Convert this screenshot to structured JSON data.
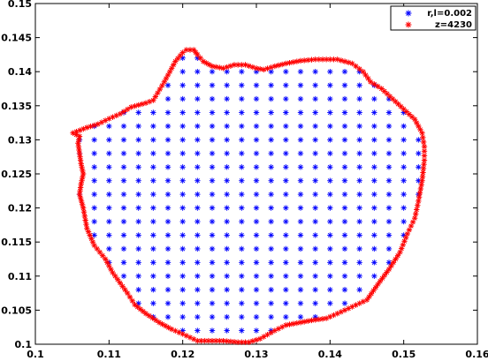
{
  "chart_data": {
    "type": "scatter",
    "xlim": [
      0.1,
      0.16
    ],
    "ylim": [
      0.1,
      0.15
    ],
    "x_ticks": [
      "0.1",
      "0.11",
      "0.12",
      "0.13",
      "0.14",
      "0.15",
      "0.16"
    ],
    "y_ticks": [
      "0.1",
      "0.105",
      "0.11",
      "0.115",
      "0.12",
      "0.125",
      "0.13",
      "0.135",
      "0.14",
      "0.145",
      "0.15"
    ],
    "grid": false,
    "legend_position": "top-right",
    "series": [
      {
        "name": "r,l=0.002",
        "color": "#0000ff",
        "marker": "asterisk",
        "grid_x": {
          "start": 0.106,
          "step": 0.002,
          "count": 24
        },
        "grid_y": {
          "start": 0.102,
          "step": 0.002,
          "count": 21
        }
      },
      {
        "name": "z=4230",
        "color": "#ff0000",
        "marker": "asterisk",
        "x": [
          0.1051,
          0.107,
          0.1085,
          0.11,
          0.1115,
          0.113,
          0.115,
          0.116,
          0.1175,
          0.119,
          0.12,
          0.1205,
          0.1215,
          0.122,
          0.1228,
          0.124,
          0.1255,
          0.127,
          0.1285,
          0.13,
          0.131,
          0.1325,
          0.134,
          0.136,
          0.138,
          0.1395,
          0.141,
          0.143,
          0.1445,
          0.1455,
          0.147,
          0.1485,
          0.15,
          0.1515,
          0.1525,
          0.1528,
          0.1528,
          0.1525,
          0.152,
          0.1515,
          0.1505,
          0.1495,
          0.148,
          0.1465,
          0.145,
          0.143,
          0.141,
          0.1395,
          0.1375,
          0.1355,
          0.134,
          0.1325,
          0.1305,
          0.129,
          0.1275,
          0.1255,
          0.1235,
          0.122,
          0.12,
          0.1185,
          0.1168,
          0.115,
          0.1135,
          0.1125,
          0.1115,
          0.1105,
          0.1095,
          0.108,
          0.107,
          0.1065,
          0.106,
          0.1062,
          0.1065,
          0.1062,
          0.106,
          0.1058,
          0.106
        ],
        "y": [
          0.131,
          0.1318,
          0.1323,
          0.1331,
          0.1338,
          0.1348,
          0.1354,
          0.1358,
          0.1385,
          0.1415,
          0.1428,
          0.1432,
          0.1432,
          0.1425,
          0.1415,
          0.1408,
          0.1405,
          0.141,
          0.141,
          0.1405,
          0.1403,
          0.1408,
          0.1412,
          0.1416,
          0.1418,
          0.1418,
          0.1418,
          0.1412,
          0.14,
          0.1385,
          0.1375,
          0.136,
          0.1345,
          0.133,
          0.131,
          0.129,
          0.127,
          0.124,
          0.121,
          0.1185,
          0.1162,
          0.1135,
          0.111,
          0.1088,
          0.1065,
          0.1055,
          0.1045,
          0.1038,
          0.1035,
          0.1031,
          0.1028,
          0.102,
          0.1008,
          0.1003,
          0.1003,
          0.1005,
          0.1005,
          0.1005,
          0.1015,
          0.1022,
          0.1032,
          0.1045,
          0.1058,
          0.1075,
          0.109,
          0.1105,
          0.1125,
          0.1145,
          0.117,
          0.12,
          0.122,
          0.1235,
          0.125,
          0.1265,
          0.128,
          0.1295,
          0.1305
        ]
      }
    ]
  }
}
